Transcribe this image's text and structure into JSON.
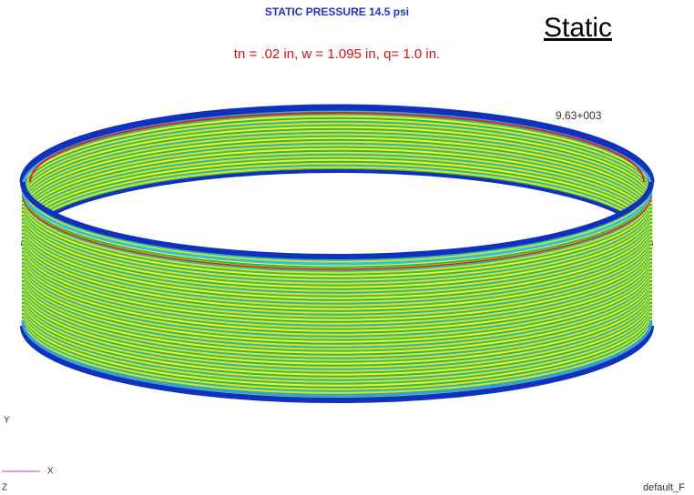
{
  "header": {
    "title": "STATIC PRESSURE 14.5 psi",
    "subtitle": "tn = .02 in, w = 1.095 in, q= 1.0 in.",
    "tag": "Static"
  },
  "viewport": {
    "legend_value": "9.63+003",
    "axis_y": "Y",
    "axis_x": "X",
    "axis_z": "Z",
    "model_name": "default_F"
  }
}
